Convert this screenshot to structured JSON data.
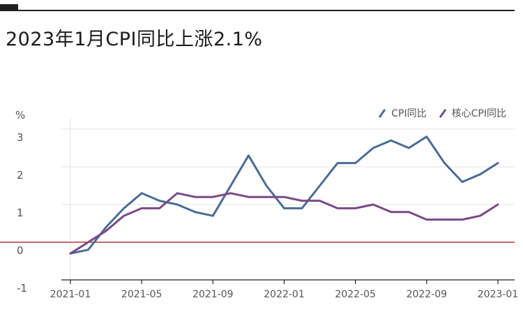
{
  "header": {
    "title": "2023年1月CPI同比上涨2.1%"
  },
  "colors": {
    "cpi": "#4a6c94",
    "core": "#7a4a86",
    "zero_line": "#b23a3a",
    "grid": "#e3e3e3",
    "axis": "#222222",
    "tick_text": "#555555"
  },
  "chart_data": {
    "type": "line",
    "title": "2023年1月CPI同比上涨2.1%",
    "ylabel": "%",
    "ylim": [
      -1,
      3
    ],
    "yticks": [
      "-1",
      "0",
      "1",
      "2",
      "3"
    ],
    "xtick_labels": [
      "2021-01",
      "2021-05",
      "2021-09",
      "2022-01",
      "2022-05",
      "2022-09",
      "2023-01"
    ],
    "x": [
      "2021-01",
      "2021-02",
      "2021-03",
      "2021-04",
      "2021-05",
      "2021-06",
      "2021-07",
      "2021-08",
      "2021-09",
      "2021-10",
      "2021-11",
      "2021-12",
      "2022-01",
      "2022-02",
      "2022-03",
      "2022-04",
      "2022-05",
      "2022-06",
      "2022-07",
      "2022-08",
      "2022-09",
      "2022-10",
      "2022-11",
      "2022-12",
      "2023-01"
    ],
    "grid": true,
    "legend_position": "top-right",
    "series": [
      {
        "name": "CPI同比",
        "color": "#4a6c94",
        "values": [
          -0.3,
          -0.2,
          0.4,
          0.9,
          1.3,
          1.1,
          1.0,
          0.8,
          0.7,
          1.5,
          2.3,
          1.5,
          0.9,
          0.9,
          1.5,
          2.1,
          2.1,
          2.5,
          2.7,
          2.5,
          2.8,
          2.1,
          1.6,
          1.8,
          2.1
        ]
      },
      {
        "name": "核心CPI同比",
        "color": "#7a4a86",
        "values": [
          -0.3,
          0.0,
          0.3,
          0.7,
          0.9,
          0.9,
          1.3,
          1.2,
          1.2,
          1.3,
          1.2,
          1.2,
          1.2,
          1.1,
          1.1,
          0.9,
          0.9,
          1.0,
          0.8,
          0.8,
          0.6,
          0.6,
          0.6,
          0.7,
          1.0
        ]
      }
    ]
  }
}
